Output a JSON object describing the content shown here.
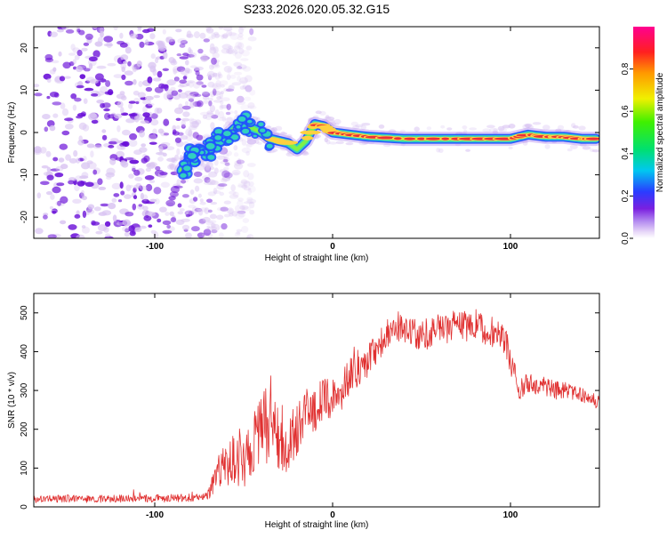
{
  "title": "S233.2026.020.05.32.G15",
  "colors": {
    "snr_line": "#e03030",
    "track_core": "#e8303a",
    "track_mid": "#ffd040",
    "track_outer": "#30d0c0",
    "track_edge": "#2050ff",
    "scatter_dark": "#6a10d8",
    "scatter_light": "#d9c4f2"
  },
  "chart_data": [
    {
      "type": "heatmap",
      "title": "S233.2026.020.05.32.G15",
      "xlabel": "Height of straight line (km)",
      "ylabel": "Frequency (Hz)",
      "xlim": [
        -168,
        150
      ],
      "ylim": [
        -25,
        25
      ],
      "xticks": [
        -100,
        0,
        100
      ],
      "xtick_labels": [
        "-100",
        "0",
        "100"
      ],
      "yticks": [
        -20,
        -10,
        0,
        10,
        20
      ],
      "ytick_labels": [
        "-20",
        "-10",
        "0",
        "10",
        "20"
      ],
      "colorbar": {
        "label": "Normalized spectral amplitude",
        "range": [
          0,
          1
        ],
        "ticks": [
          0.0,
          0.2,
          0.4,
          0.6,
          0.8
        ],
        "tick_labels": [
          "0.0",
          "0.2",
          "0.4",
          "0.6",
          "0.8"
        ]
      },
      "noise_region_x": [
        -168,
        -55
      ],
      "signal_track": {
        "x": [
          -85,
          -80,
          -75,
          -70,
          -65,
          -60,
          -55,
          -50,
          -45,
          -40,
          -35,
          -30,
          -25,
          -20,
          -15,
          -10,
          -5,
          0,
          10,
          20,
          40,
          60,
          80,
          100,
          110,
          120,
          130,
          140,
          148
        ],
        "freq": [
          -9,
          -6,
          -4,
          -5,
          -2,
          -1,
          1,
          2,
          1,
          0,
          -1.5,
          -2,
          -2.5,
          -4,
          -2,
          2,
          1.5,
          0,
          -0.5,
          -1,
          -1.5,
          -1.5,
          -1.5,
          -1.5,
          -0.5,
          -1,
          -1,
          -1.5,
          -1.5
        ],
        "amplitude": [
          0.15,
          0.2,
          0.3,
          0.35,
          0.3,
          0.3,
          0.35,
          0.35,
          0.3,
          0.35,
          0.6,
          0.7,
          0.5,
          0.45,
          0.6,
          0.8,
          0.7,
          0.7,
          0.75,
          0.9,
          0.75,
          0.8,
          0.8,
          0.85,
          0.7,
          0.75,
          0.75,
          0.85,
          0.9
        ]
      }
    },
    {
      "type": "line",
      "xlabel": "Height of straight line (km)",
      "ylabel": "SNR (10 * v/v)",
      "xlim": [
        -168,
        150
      ],
      "ylim": [
        0,
        550
      ],
      "xticks": [
        -100,
        0,
        100
      ],
      "xtick_labels": [
        "-100",
        "0",
        "100"
      ],
      "yticks": [
        0,
        100,
        200,
        300,
        400,
        500
      ],
      "ytick_labels": [
        "0",
        "100",
        "200",
        "300",
        "400",
        "500"
      ],
      "series": [
        {
          "name": "SNR",
          "x": [
            -168,
            -150,
            -130,
            -110,
            -90,
            -72,
            -68,
            -65,
            -60,
            -55,
            -50,
            -45,
            -40,
            -35,
            -30,
            -25,
            -20,
            -15,
            -10,
            -5,
            0,
            5,
            10,
            15,
            20,
            25,
            30,
            35,
            40,
            45,
            50,
            55,
            60,
            65,
            70,
            75,
            80,
            85,
            90,
            95,
            98,
            100,
            103,
            105,
            110,
            115,
            120,
            125,
            130,
            135,
            140,
            145,
            150
          ],
          "y": [
            20,
            22,
            20,
            22,
            22,
            25,
            50,
            90,
            110,
            120,
            120,
            160,
            200,
            220,
            180,
            170,
            190,
            260,
            250,
            270,
            280,
            300,
            340,
            360,
            380,
            410,
            440,
            470,
            460,
            450,
            440,
            450,
            470,
            460,
            470,
            465,
            470,
            460,
            450,
            440,
            420,
            370,
            350,
            300,
            320,
            310,
            310,
            300,
            300,
            295,
            290,
            280,
            265
          ],
          "noise_amplitude": [
            10,
            10,
            10,
            10,
            10,
            10,
            25,
            40,
            55,
            70,
            70,
            80,
            90,
            110,
            90,
            80,
            70,
            70,
            70,
            60,
            50,
            50,
            50,
            50,
            45,
            40,
            40,
            40,
            40,
            40,
            40,
            40,
            40,
            40,
            40,
            40,
            40,
            40,
            40,
            40,
            40,
            40,
            30,
            30,
            25,
            25,
            25,
            25,
            25,
            20,
            20,
            20,
            20
          ]
        }
      ]
    }
  ]
}
